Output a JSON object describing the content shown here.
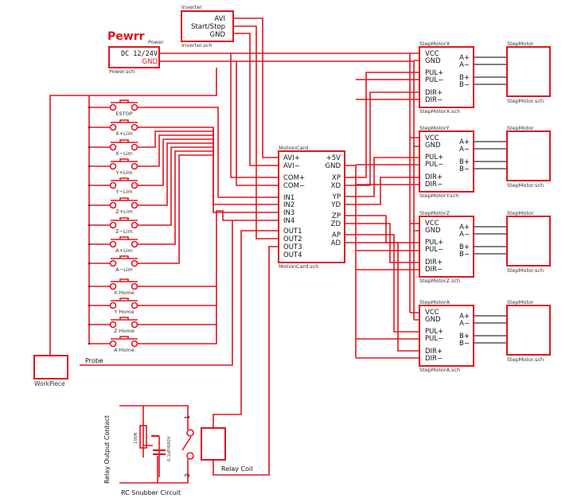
{
  "inverter": {
    "title": "Inverter",
    "file": "Inverter.sch",
    "pins": [
      "AVI",
      "Start/Stop",
      "GND"
    ]
  },
  "power": {
    "overlay_label": "Pewrr",
    "title": "Power",
    "file": "Power.sch",
    "pins": [
      "DC 12/24V",
      "GND"
    ]
  },
  "motion_card": {
    "title": "MotionCard",
    "file": "MotionCard.sch",
    "left_pins": [
      "AVI+",
      "AVI−",
      "COM+",
      "COM−",
      "IN1",
      "IN2",
      "IN3",
      "IN4",
      "OUT1",
      "OUT2",
      "OUT3",
      "OUT4"
    ],
    "right_pins": [
      "+5V",
      "GND",
      "XP",
      "XD",
      "YP",
      "YD",
      "ZP",
      "ZD",
      "AP",
      "AD"
    ]
  },
  "drivers": [
    {
      "title": "StepMotorX",
      "file": "StepMotorX.sch"
    },
    {
      "title": "StepMotorY",
      "file": "StepMotorY.sch"
    },
    {
      "title": "StepMotorZ",
      "file": "StepMotorZ.sch"
    },
    {
      "title": "StepMotorA",
      "file": "StepMotorA.sch"
    }
  ],
  "driver_pins": {
    "left": [
      "VCC",
      "GND",
      "PUL+",
      "PUL−",
      "DIR+",
      "DIR−"
    ],
    "right": [
      "A+",
      "A−",
      "B+",
      "B−"
    ]
  },
  "motor": {
    "title": "StepMotor",
    "file": "StepMotor.sch"
  },
  "switches": [
    "ESTOP",
    "X+Lim",
    "X−Lim",
    "Y+Lim",
    "Y−Lim",
    "Z+Lim",
    "Z−Lim",
    "A+Lim",
    "A−Lim",
    "X Home",
    "Y Home",
    "Z Home",
    "A Home"
  ],
  "workpiece": {
    "label": "WorkPiece",
    "probe": "Probe"
  },
  "relay": {
    "contact_label": "Relay Output Contact",
    "resistor": "100R",
    "capacitor": "0.1uF/600V",
    "pin1": "1",
    "pin2": "2",
    "coil_label": "Relay Coil",
    "snubber_label": "RC Snubber Circuit"
  },
  "colors": {
    "wire": "#e0141e",
    "motor_wire": "#555555"
  }
}
